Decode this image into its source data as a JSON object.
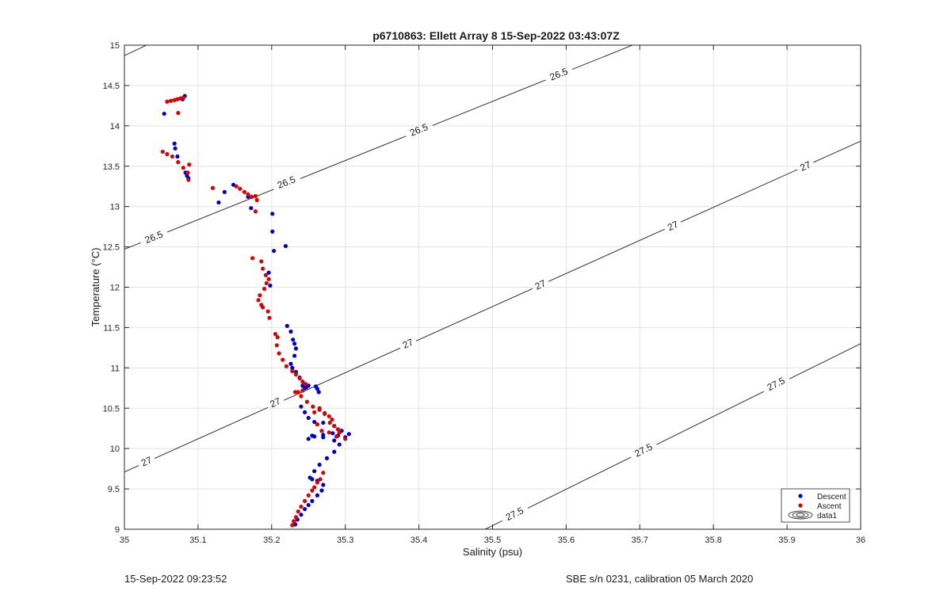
{
  "chart_data": {
    "type": "scatter",
    "title": "p6710863: Ellett Array 8 15-Sep-2022 03:43:07Z",
    "xlabel": "Salinity (psu)",
    "ylabel": "Temperature (°C)",
    "xlim": [
      35,
      36
    ],
    "ylim": [
      9,
      15
    ],
    "xticks": [
      35,
      35.1,
      35.2,
      35.3,
      35.4,
      35.5,
      35.6,
      35.7,
      35.8,
      35.9,
      36
    ],
    "xtick_labels": [
      "35",
      "35.1",
      "35.2",
      "35.3",
      "35.4",
      "35.5",
      "35.6",
      "35.7",
      "35.8",
      "35.9",
      "36"
    ],
    "yticks": [
      9,
      9.5,
      10,
      10.5,
      11,
      11.5,
      12,
      12.5,
      13,
      13.5,
      14,
      14.5,
      15
    ],
    "ytick_labels": [
      "9",
      "9.5",
      "10",
      "10.5",
      "11",
      "11.5",
      "12",
      "12.5",
      "13",
      "13.5",
      "14",
      "14.5",
      "15"
    ],
    "grid": true,
    "legend_position": "bottom-right",
    "contour_legend_label": "data1",
    "series": [
      {
        "name": "Descent",
        "color": "#0000cc",
        "x": [
          35.082,
          35.079,
          35.054,
          35.068,
          35.069,
          35.072,
          35.083,
          35.085,
          35.087,
          35.128,
          35.136,
          35.148,
          35.168,
          35.172,
          35.201,
          35.201,
          35.203,
          35.219,
          35.196,
          35.198,
          35.221,
          35.226,
          35.229,
          35.231,
          35.233,
          35.231,
          35.226,
          35.228,
          35.233,
          35.238,
          35.242,
          35.245,
          35.247,
          35.25,
          35.26,
          35.262,
          35.264,
          35.24,
          35.245,
          35.25,
          35.258,
          35.27,
          35.285,
          35.295,
          35.305,
          35.3,
          35.285,
          35.27,
          35.255,
          35.25,
          35.258,
          35.27,
          35.283,
          35.29,
          35.292,
          35.285,
          35.275,
          35.265,
          35.258,
          35.252,
          35.255,
          35.262,
          35.27,
          35.268,
          35.262,
          35.255,
          35.25,
          35.245,
          35.24,
          35.235,
          35.232
        ],
        "y": [
          14.37,
          14.33,
          14.15,
          13.78,
          13.72,
          13.62,
          13.42,
          13.38,
          13.35,
          13.05,
          13.18,
          13.27,
          13.12,
          12.98,
          12.91,
          12.69,
          12.45,
          12.51,
          12.18,
          12.02,
          11.52,
          11.45,
          11.35,
          11.3,
          11.24,
          11.15,
          11.05,
          11.0,
          10.95,
          10.88,
          10.78,
          10.75,
          10.76,
          10.78,
          10.77,
          10.74,
          10.7,
          10.52,
          10.45,
          10.38,
          10.33,
          10.32,
          10.28,
          10.22,
          10.18,
          10.14,
          10.1,
          10.14,
          10.16,
          10.12,
          10.15,
          10.17,
          10.19,
          10.16,
          10.05,
          9.96,
          9.88,
          9.8,
          9.72,
          9.64,
          9.62,
          9.6,
          9.55,
          9.48,
          9.42,
          9.35,
          9.3,
          9.25,
          9.18,
          9.12,
          9.06
        ]
      },
      {
        "name": "Ascent",
        "color": "#dd0000",
        "x": [
          35.058,
          35.063,
          35.068,
          35.072,
          35.076,
          35.08,
          35.073,
          35.052,
          35.058,
          35.065,
          35.073,
          35.08,
          35.088,
          35.086,
          35.087,
          35.12,
          35.152,
          35.157,
          35.163,
          35.168,
          35.173,
          35.178,
          35.18,
          35.178,
          35.174,
          35.186,
          35.188,
          35.192,
          35.196,
          35.193,
          35.19,
          35.184,
          35.182,
          35.186,
          35.195,
          35.197,
          35.188,
          35.205,
          35.208,
          35.207,
          35.21,
          35.215,
          35.22,
          35.228,
          35.233,
          35.238,
          35.242,
          35.246,
          35.242,
          35.236,
          35.232,
          35.24,
          35.248,
          35.256,
          35.265,
          35.272,
          35.278,
          35.282,
          35.279,
          35.285,
          35.29,
          35.292,
          35.3,
          35.288,
          35.278,
          35.268,
          35.262,
          35.258,
          35.265,
          35.272,
          35.27,
          35.266,
          35.262,
          35.258,
          35.255,
          35.25,
          35.245,
          35.24,
          35.236,
          35.233,
          35.23,
          35.228
        ],
        "y": [
          14.3,
          14.31,
          14.32,
          14.33,
          14.34,
          14.35,
          14.16,
          13.68,
          13.65,
          13.62,
          13.55,
          13.48,
          13.52,
          13.42,
          13.33,
          13.23,
          13.25,
          13.22,
          13.18,
          13.15,
          13.12,
          13.13,
          13.08,
          12.94,
          12.36,
          12.32,
          12.23,
          12.15,
          12.1,
          12.05,
          11.98,
          11.9,
          11.84,
          11.78,
          11.7,
          11.62,
          11.75,
          11.42,
          11.38,
          11.28,
          11.18,
          11.1,
          11.02,
          10.96,
          10.92,
          10.87,
          10.83,
          10.8,
          10.72,
          10.7,
          10.7,
          10.65,
          10.58,
          10.52,
          10.48,
          10.44,
          10.4,
          10.36,
          10.32,
          10.28,
          10.24,
          10.2,
          10.12,
          10.15,
          10.2,
          10.22,
          10.3,
          10.45,
          10.5,
          10.43,
          9.7,
          9.62,
          9.58,
          9.52,
          9.48,
          9.42,
          9.35,
          9.28,
          9.22,
          9.15,
          9.1,
          9.05
        ]
      }
    ],
    "isopycnals": [
      {
        "label": "26.5",
        "x": [
          35,
          35.69
        ],
        "y": [
          12.47,
          15
        ],
        "label_positions": [
          [
            35.04,
            12.62
          ],
          [
            35.22,
            13.3
          ],
          [
            35.4,
            13.95
          ],
          [
            35.59,
            14.64
          ]
        ]
      },
      {
        "label": "27",
        "x": [
          35,
          36
        ],
        "y": [
          9.71,
          13.81
        ],
        "label_positions": [
          [
            35.03,
            9.84
          ],
          [
            35.205,
            10.57
          ],
          [
            35.385,
            11.3
          ],
          [
            35.565,
            12.03
          ],
          [
            35.745,
            12.76
          ],
          [
            35.925,
            13.5
          ]
        ]
      },
      {
        "label": "27.5",
        "x": [
          35.49,
          36
        ],
        "y": [
          9,
          11.3
        ],
        "label_positions": [
          [
            35.53,
            9.19
          ],
          [
            35.705,
            9.98
          ],
          [
            35.885,
            10.8
          ]
        ]
      },
      {
        "label": "26.5",
        "x": [
          35,
          35.03
        ],
        "y": [
          14.87,
          15
        ],
        "label_positions": []
      }
    ]
  },
  "footer": {
    "timestamp": "15-Sep-2022 09:23:52",
    "instrument": "SBE s/n 0231, calibration 05 March 2020"
  }
}
